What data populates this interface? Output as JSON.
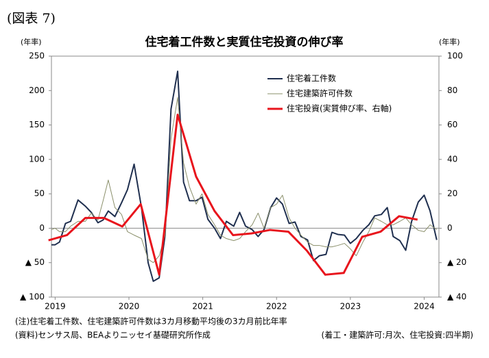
{
  "chart_data": {
    "type": "line",
    "figure_label": "(図表 7)",
    "title": "住宅着工件数と実質住宅投資の伸び率",
    "y_axis_label": "(年率)",
    "y2_axis_label": "(年率)",
    "note": "(注)住宅着工件数、住宅建築許可件数は3カ月移動平均後の3カ月前比年率",
    "source": "(資料)センサス局、BEAよりニッセイ基礎研究所作成",
    "frequency_note": "(着工・建築許可:月次、住宅投資:四半期)",
    "xlim": [
      2018.95,
      2024.2
    ],
    "xticks": [
      2019,
      2020,
      2021,
      2022,
      2023,
      2024
    ],
    "ylim": [
      -100,
      250
    ],
    "yticks": [
      {
        "value": -100,
        "label": "▲ 100"
      },
      {
        "value": -50,
        "label": "▲ 50"
      },
      0,
      50,
      100,
      150,
      200,
      250
    ],
    "y2lim": [
      -40,
      100
    ],
    "y2ticks": [
      {
        "value": -40,
        "label": "▲ 40"
      },
      {
        "value": -20,
        "label": "▲ 20"
      },
      0,
      20,
      40,
      60,
      80,
      100
    ],
    "legend": "top",
    "series": [
      {
        "name": "住宅着工件数",
        "color": "#1f2f4f",
        "width": 2,
        "x": [
          2018.95,
          2019.0,
          2019.06,
          2019.14,
          2019.21,
          2019.31,
          2019.41,
          2019.49,
          2019.58,
          2019.65,
          2019.72,
          2019.81,
          2019.9,
          2019.98,
          2020.07,
          2020.17,
          2020.26,
          2020.33,
          2020.41,
          2020.49,
          2020.57,
          2020.66,
          2020.74,
          2020.82,
          2020.91,
          2020.99,
          2021.07,
          2021.16,
          2021.24,
          2021.32,
          2021.42,
          2021.5,
          2021.58,
          2021.67,
          2021.75,
          2021.83,
          2021.92,
          2022.0,
          2022.08,
          2022.17,
          2022.25,
          2022.33,
          2022.42,
          2022.5,
          2022.58,
          2022.67,
          2022.75,
          2022.83,
          2022.92,
          2023.0,
          2023.08,
          2023.17,
          2023.25,
          2023.33,
          2023.42,
          2023.5,
          2023.58,
          2023.67,
          2023.75,
          2023.83,
          2023.92,
          2024.0,
          2024.08,
          2024.17
        ],
        "values": [
          -24,
          -24,
          -20,
          7,
          10,
          41,
          32,
          23,
          8,
          12,
          25,
          17,
          37,
          56,
          93,
          30,
          -50,
          -77,
          -72,
          -10,
          173,
          228,
          67,
          40,
          40,
          45,
          13,
          0,
          -15,
          10,
          3,
          23,
          3,
          -2,
          -12,
          -2,
          30,
          44,
          35,
          7,
          9,
          -12,
          -17,
          -47,
          -40,
          -38,
          -6,
          -9,
          -10,
          -22,
          -15,
          -3,
          5,
          18,
          20,
          30,
          -12,
          -18,
          -32,
          10,
          38,
          48,
          25,
          -17
        ]
      },
      {
        "name": "住宅建築許可件数",
        "color": "#8a8f6a",
        "width": 1,
        "x": [
          2018.95,
          2019.0,
          2019.06,
          2019.14,
          2019.21,
          2019.31,
          2019.41,
          2019.49,
          2019.58,
          2019.65,
          2019.72,
          2019.81,
          2019.9,
          2019.98,
          2020.07,
          2020.17,
          2020.26,
          2020.33,
          2020.41,
          2020.49,
          2020.57,
          2020.66,
          2020.74,
          2020.82,
          2020.91,
          2020.99,
          2021.07,
          2021.16,
          2021.24,
          2021.32,
          2021.42,
          2021.5,
          2021.58,
          2021.67,
          2021.75,
          2021.83,
          2021.92,
          2022.0,
          2022.08,
          2022.17,
          2022.25,
          2022.33,
          2022.42,
          2022.5,
          2022.58,
          2022.67,
          2022.75,
          2022.83,
          2022.92,
          2023.0,
          2023.08,
          2023.17,
          2023.25,
          2023.33,
          2023.42,
          2023.5,
          2023.58,
          2023.67,
          2023.75,
          2023.83,
          2023.92,
          2024.0,
          2024.08,
          2024.17
        ],
        "values": [
          -2,
          0,
          -5,
          -5,
          3,
          10,
          10,
          22,
          12,
          40,
          70,
          30,
          20,
          -5,
          -10,
          -15,
          -45,
          -50,
          -40,
          -10,
          130,
          190,
          95,
          60,
          35,
          50,
          20,
          5,
          -10,
          -15,
          -18,
          -15,
          -5,
          5,
          22,
          0,
          30,
          35,
          48,
          15,
          0,
          -10,
          -20,
          -25,
          -25,
          -27,
          -27,
          -25,
          -22,
          -30,
          -40,
          -20,
          -5,
          15,
          10,
          5,
          5,
          10,
          15,
          5,
          -3,
          -5,
          5,
          -2
        ]
      },
      {
        "name": "住宅投資(実質伸び率、右軸)",
        "color": "#e8141c",
        "width": 3,
        "axis": "y2",
        "x": [
          2018.91,
          2019.16,
          2019.41,
          2019.66,
          2019.91,
          2020.16,
          2020.41,
          2020.66,
          2020.91,
          2021.16,
          2021.41,
          2021.66,
          2021.91,
          2022.16,
          2022.41,
          2022.66,
          2022.91,
          2023.16,
          2023.41,
          2023.66,
          2023.91
        ],
        "values": [
          -7,
          -4,
          6,
          6,
          1,
          14,
          -27,
          66,
          30,
          10,
          -4,
          -3,
          -1,
          -2,
          -13,
          -27,
          -26,
          -5,
          -2,
          7,
          5
        ]
      }
    ]
  }
}
